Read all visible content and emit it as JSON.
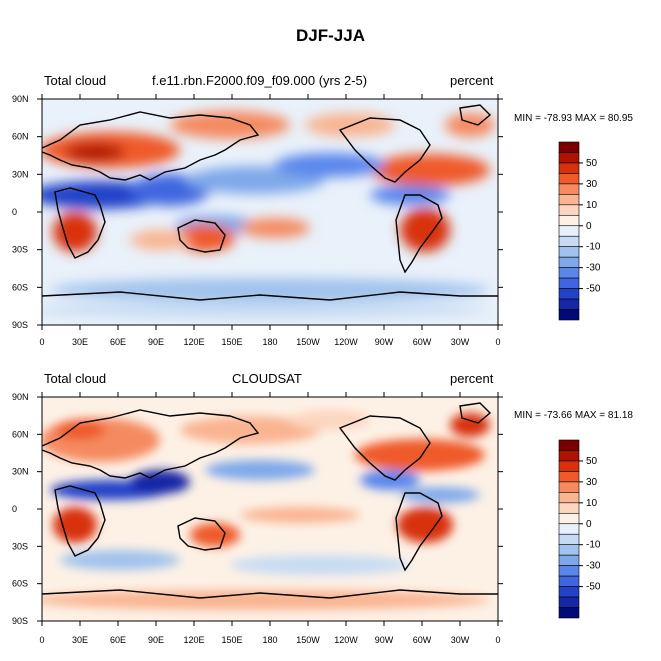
{
  "figure_title": "DJF-JJA",
  "colors": {
    "scale": [
      "#7a0000",
      "#b01200",
      "#d8300c",
      "#ef5a2b",
      "#f58a60",
      "#f9b491",
      "#fcd6c0",
      "#fdf1e6",
      "#e8f1fb",
      "#c6dbf3",
      "#a0c2ec",
      "#7ea8ea",
      "#5a86ec",
      "#3f66e0",
      "#2442c8",
      "#1527a6",
      "#020a78"
    ],
    "land_outline": "#000000"
  },
  "colorbar": {
    "labels": [
      "50",
      "30",
      "10",
      "0",
      "-10",
      "-30",
      "-50"
    ]
  },
  "axes": {
    "lat_labels": [
      "90N",
      "60N",
      "30N",
      "0",
      "30S",
      "60S",
      "90S"
    ],
    "lon_labels": [
      "0",
      "30E",
      "60E",
      "90E",
      "120E",
      "150E",
      "180",
      "150W",
      "120W",
      "90W",
      "60W",
      "30W",
      "0"
    ]
  },
  "panels": [
    {
      "left_label": "Total cloud",
      "center_label": "f.e11.rbn.F2000.f09_f09.000 (yrs 2-5)",
      "right_label": "percent",
      "min_max": "MIN = -78.93 MAX =  80.95"
    },
    {
      "left_label": "Total cloud",
      "center_label": "CLOUDSAT",
      "right_label": "percent",
      "min_max": "MIN = -73.66 MAX =  81.18"
    }
  ],
  "chart_data": [
    {
      "type": "heatmap",
      "title": "f.e11.rbn.F2000.f09_f09.000 (yrs 2-5)",
      "variable": "Total cloud",
      "units": "percent",
      "season_difference": "DJF-JJA",
      "min": -78.93,
      "max": 80.95,
      "xlim": [
        0,
        360
      ],
      "ylim": [
        -90,
        90
      ],
      "x_ticks": [
        "0",
        "30E",
        "60E",
        "90E",
        "120E",
        "150E",
        "180",
        "150W",
        "120W",
        "90W",
        "60W",
        "30W",
        "0"
      ],
      "y_ticks": [
        "90N",
        "60N",
        "30N",
        "0",
        "30S",
        "60S",
        "90S"
      ],
      "contour_levels": [
        -60,
        -50,
        -40,
        -30,
        -20,
        -10,
        -5,
        0,
        5,
        10,
        20,
        30,
        40,
        50,
        60
      ]
    },
    {
      "type": "heatmap",
      "title": "CLOUDSAT",
      "variable": "Total cloud",
      "units": "percent",
      "season_difference": "DJF-JJA",
      "min": -73.66,
      "max": 81.18,
      "xlim": [
        0,
        360
      ],
      "ylim": [
        -90,
        90
      ],
      "x_ticks": [
        "0",
        "30E",
        "60E",
        "90E",
        "120E",
        "150E",
        "180",
        "150W",
        "120W",
        "90W",
        "60W",
        "30W",
        "0"
      ],
      "y_ticks": [
        "90N",
        "60N",
        "30N",
        "0",
        "30S",
        "60S",
        "90S"
      ],
      "contour_levels": [
        -60,
        -50,
        -40,
        -30,
        -20,
        -10,
        -5,
        0,
        5,
        10,
        20,
        30,
        40,
        50,
        60
      ]
    }
  ]
}
